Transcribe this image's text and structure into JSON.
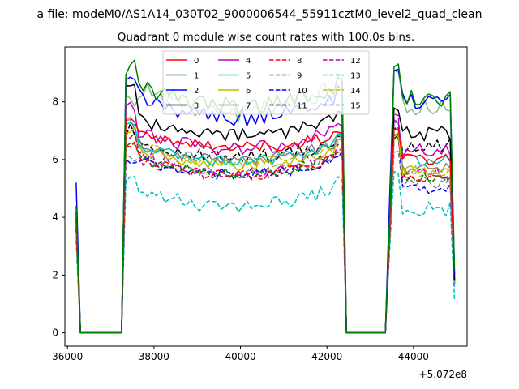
{
  "suptitle": "a file: modeM0/AS1A14_030T02_9000006544_55911cztM0_level2_quad_clean",
  "chart_data": {
    "type": "line",
    "title": "Quadrant 0 module wise count rates with 100.0s bins.",
    "xlabel": "",
    "ylabel": "",
    "offset_label": "+5.072e8",
    "xlim": [
      35940,
      45240
    ],
    "ylim": [
      -0.46,
      9.9
    ],
    "xticks": [
      36000,
      38000,
      40000,
      42000,
      44000
    ],
    "xtick_labels": [
      "36000",
      "38000",
      "40000",
      "42000",
      "44000"
    ],
    "yticks": [
      0,
      2,
      4,
      6,
      8
    ],
    "ytick_labels": [
      "0",
      "2",
      "4",
      "6",
      "8"
    ],
    "x_start": 36200,
    "x_step": 100,
    "gap_after_index": 10,
    "gap_length": 50,
    "legend": {
      "location": "upper center",
      "columns": 4
    },
    "series": [
      {
        "name": "0",
        "color": "#ff0000",
        "dash": "solid",
        "top": 7.5,
        "mid": 6.2,
        "edge": 7.0,
        "peak2": 7.0,
        "seg3": 6.0,
        "start": 4.0,
        "end": 2.0,
        "noise": 0.2
      },
      {
        "name": "1",
        "color": "#008000",
        "dash": "solid",
        "top": 9.2,
        "mid": 7.5,
        "edge": 8.8,
        "peak2": 9.3,
        "seg3": 8.1,
        "start": 4.4,
        "end": 2.2,
        "noise": 0.3
      },
      {
        "name": "2",
        "color": "#0000ff",
        "dash": "solid",
        "top": 8.9,
        "mid": 7.0,
        "edge": 8.5,
        "peak2": 9.2,
        "seg3": 8.0,
        "start": 5.2,
        "end": 2.0,
        "noise": 0.3
      },
      {
        "name": "3",
        "color": "#000000",
        "dash": "solid",
        "top": 8.5,
        "mid": 6.5,
        "edge": 7.7,
        "peak2": 7.7,
        "seg3": 6.9,
        "start": 4.2,
        "end": 1.8,
        "noise": 0.25
      },
      {
        "name": "4",
        "color": "#bf00bf",
        "dash": "solid",
        "top": 7.8,
        "mid": 6.0,
        "edge": 7.3,
        "peak2": 7.3,
        "seg3": 6.3,
        "start": 4.0,
        "end": 1.9,
        "noise": 0.25
      },
      {
        "name": "5",
        "color": "#00bfbf",
        "dash": "solid",
        "top": 7.3,
        "mid": 5.6,
        "edge": 6.8,
        "peak2": 7.3,
        "seg3": 6.0,
        "start": 3.9,
        "end": 1.7,
        "noise": 0.2
      },
      {
        "name": "6",
        "color": "#bfbf00",
        "dash": "solid",
        "top": 7.0,
        "mid": 5.5,
        "edge": 6.6,
        "peak2": 6.9,
        "seg3": 5.6,
        "start": 3.8,
        "end": 1.7,
        "noise": 0.2
      },
      {
        "name": "7",
        "color": "#808080",
        "dash": "solid",
        "top": 7.2,
        "mid": 5.7,
        "edge": 6.8,
        "peak2": 6.9,
        "seg3": 5.7,
        "start": 3.8,
        "end": 1.8,
        "noise": 0.2
      },
      {
        "name": "8",
        "color": "#ff0000",
        "dash": "dashed",
        "top": 6.6,
        "mid": 5.1,
        "edge": 6.3,
        "peak2": 6.8,
        "seg3": 5.4,
        "start": 3.6,
        "end": 1.8,
        "noise": 0.2
      },
      {
        "name": "9",
        "color": "#008000",
        "dash": "dashed",
        "top": 6.5,
        "mid": 5.2,
        "edge": 6.3,
        "peak2": 6.8,
        "seg3": 5.4,
        "start": 3.6,
        "end": 1.7,
        "noise": 0.2
      },
      {
        "name": "10",
        "color": "#0000ff",
        "dash": "dashed",
        "top": 6.0,
        "mid": 5.2,
        "edge": 6.2,
        "peak2": 6.8,
        "seg3": 5.0,
        "start": 3.6,
        "end": 1.6,
        "noise": 0.2
      },
      {
        "name": "11",
        "color": "#000000",
        "dash": "dashed",
        "top": 7.0,
        "mid": 5.8,
        "edge": 6.8,
        "peak2": 7.0,
        "seg3": 6.5,
        "start": 3.9,
        "end": 1.8,
        "noise": 0.25
      },
      {
        "name": "12",
        "color": "#bf00bf",
        "dash": "dashed",
        "top": 6.8,
        "mid": 5.2,
        "edge": 6.5,
        "peak2": 7.5,
        "seg3": 5.5,
        "start": 3.7,
        "end": 1.7,
        "noise": 0.2
      },
      {
        "name": "13",
        "color": "#00bfbf",
        "dash": "dashed",
        "top": 5.3,
        "mid": 4.0,
        "edge": 5.3,
        "peak2": 5.6,
        "seg3": 4.3,
        "start": 3.2,
        "end": 1.1,
        "noise": 0.25
      },
      {
        "name": "14",
        "color": "#bfbf00",
        "dash": "dashed",
        "top": 6.9,
        "mid": 5.6,
        "edge": 6.7,
        "peak2": 6.8,
        "seg3": 5.6,
        "start": 3.7,
        "end": 1.7,
        "noise": 0.2
      },
      {
        "name": "15",
        "color": "#808080",
        "dash": "dashed",
        "top": 6.0,
        "mid": 5.3,
        "edge": 6.2,
        "peak2": 6.3,
        "seg3": 5.2,
        "start": 3.6,
        "end": 1.6,
        "noise": 0.2
      },
      {
        "name": "",
        "color": "#80c080",
        "dash": "solid",
        "top": 8.2,
        "mid": 7.2,
        "edge": 8.8,
        "peak2": 9.0,
        "seg3": 7.8,
        "start": 3.9,
        "end": 2.0,
        "noise": 0.35
      }
    ]
  }
}
